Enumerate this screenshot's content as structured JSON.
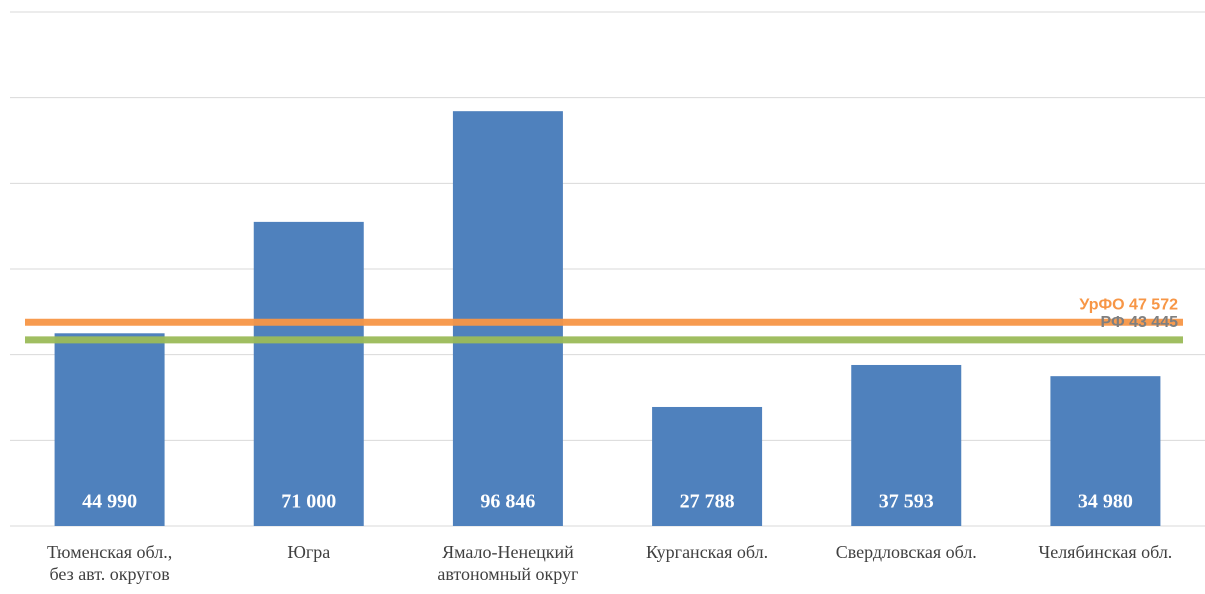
{
  "chart_data": {
    "type": "bar",
    "categories": [
      "Тюменская обл.,\nбез авт. округов",
      "Югра",
      "Ямало-Ненецкий\nавтономный округ",
      "Курганская обл.",
      "Свердловская обл.",
      "Челябинская обл."
    ],
    "values": [
      44990,
      71000,
      96846,
      27788,
      37593,
      34980
    ],
    "value_labels": [
      "44 990",
      "71 000",
      "96 846",
      "27 788",
      "37 593",
      "34 980"
    ],
    "color": "#4f81bd",
    "ylim": [
      0,
      120000
    ],
    "yticks": [
      0,
      20000,
      40000,
      60000,
      80000,
      100000,
      120000
    ],
    "grid": true,
    "reference_lines": [
      {
        "label": "УрФО 47 572",
        "value": 47572,
        "color": "#f79646",
        "label_color": "#f79646"
      },
      {
        "label": "РФ 43 445",
        "value": 43445,
        "color": "#9bbb59",
        "label_color": "#7f7f7f"
      }
    ]
  }
}
